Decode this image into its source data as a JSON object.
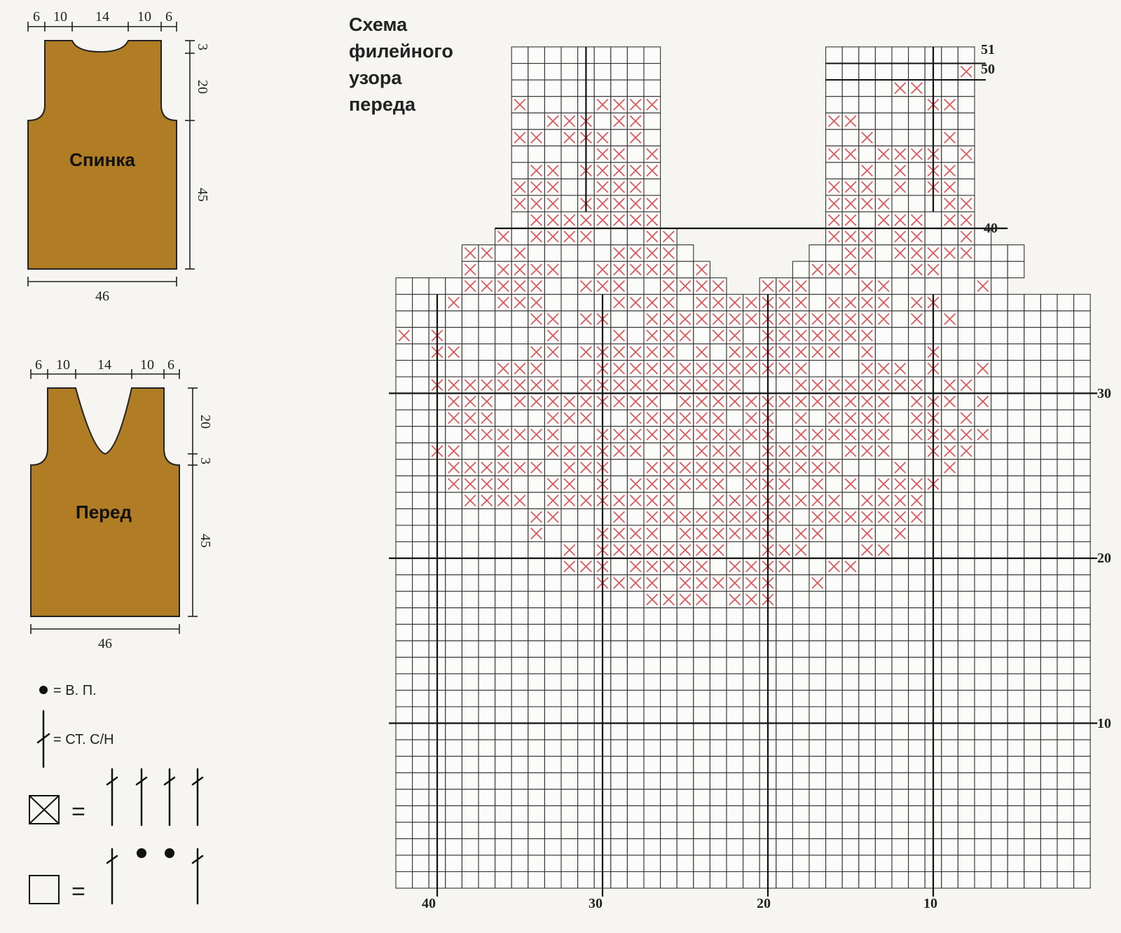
{
  "back_piece": {
    "label": "Спинка",
    "top_dims": [
      "6",
      "10",
      "14",
      "10",
      "6"
    ],
    "right_dims": [
      "3",
      "20",
      "45"
    ],
    "bottom_dim": "46"
  },
  "front_piece": {
    "label": "Перед",
    "top_dims": [
      "6",
      "10",
      "14",
      "10",
      "6"
    ],
    "right_dims": [
      "20",
      "3",
      "45"
    ],
    "bottom_dim": "46"
  },
  "legend": {
    "chain_text": "= В. П.",
    "dc_text": "= СТ. С/Н",
    "equals": "="
  },
  "chart": {
    "title_lines": [
      "Схема",
      "филейного",
      "узора",
      "переда"
    ],
    "right_labels": {
      "51": "51",
      "50": "50",
      "40": "40",
      "30": "30",
      "20": "20",
      "10": "10"
    },
    "bottom_labels": {
      "40": "40",
      "30": "30",
      "20": "20",
      "10": "10"
    },
    "cross_color": "#d9595f",
    "pattern": [
      "...........................................",
      "..................................X........",
      "......................XX......XX..........",
      "......XX....XXXXX...XX..XX......XX...XX..X",
      ".X.X.....XXX.XX...XX.XXXXXXX.......XXXX...",
      "..XX...XX.XXX.X.XX..XXX..X..X....X...XX...",
      ".X.X.XX.....XX.XX..X..XXXXXX.XXXX.XXXX....",
      "..X..X..XX.XXXXXX.X.XX.XX...X.X.XX.X......",
      "...XX.XXXX..XXX.XX.XXXXXXXXXX.X.XX.XXX....",
      "..XXXX.XXX.XXXXX..XXXX.XXXXXXX...XXXX.....",
      "..X.XXX.XXXXXXXXX..XXXXXX.XX.XXX.XXXXX....",
      ".X.X.XX.XXXX...XX.XXXXXX.XXXX.XX..X.......",
      "..XXXX.X.....XXXX.XXXXXXX..XX.XXXXX.......",
      "..XXX.XXXX..XXXXX.XXXX...XXX...XX.........",
      "....XXXXX..XXX..XXXXXXXXX...XX.....X......",
      "...X..XXX....XXXX.XXXXXXX.XXXX.XX.........",
      "........XX.XX..XXXXXXXXXXXXXXX.X.X........",
      "X.X......X...X.XXX.XX.XXXXXXX.............",
      "..XX....XX.XXXXXX.X.XXXXXXX.X...X.........",
      "......XXX...XXXXXXXXXXXXX...XXX.X..X......",
      "..XXXXXXXX.XXXXXXXXXX...XXXXXXXX.XX.......",
      "...XXX.XXXXXXXXX.XXXXXXXXXXXXX.XXX.X......",
      "...XXX...XXX..XXXXXX.XX.X.XXXX.XX.X.......",
      "....XXXXXX..XXXXXXXXXXX.XXXXXX.XXXXX......",
      "..XX..X..XXXXXX.X.XXX.XXXX.XXX..XXX.......",
      "...XXXXXX.XXX..XXXXXXXXXXXX...X..X........",
      "...XXXX..XX.X.XXXXXX.XXX.X.X.XXXX.........",
      "....XXXX.XXXXXXXX..XXXXXXXX.XXXX..........",
      "........XX...X.XXXXXXXXX.XXXXXXX..........",
      "........X...XXXX.XXXXXX.XX..X.X...........",
      "..........X.XXXXXXXX..XXX...XX............",
      "..........XXX.XXXXX.XXXX..XX..............",
      "............XXXX.XXXXXX..X................",
      "...............XXXX.XXX...................",
      "..........................................",
      "..........................................",
      "..........................................",
      "..........................................",
      "..........................................",
      "..........................................",
      "..........................................",
      "..........................................",
      "..........................................",
      "..........................................",
      "..........................................",
      "..........................................",
      "..........................................",
      "..........................................",
      "..........................................",
      "..........................................",
      "..........................................",
      ".........................................."
    ]
  }
}
